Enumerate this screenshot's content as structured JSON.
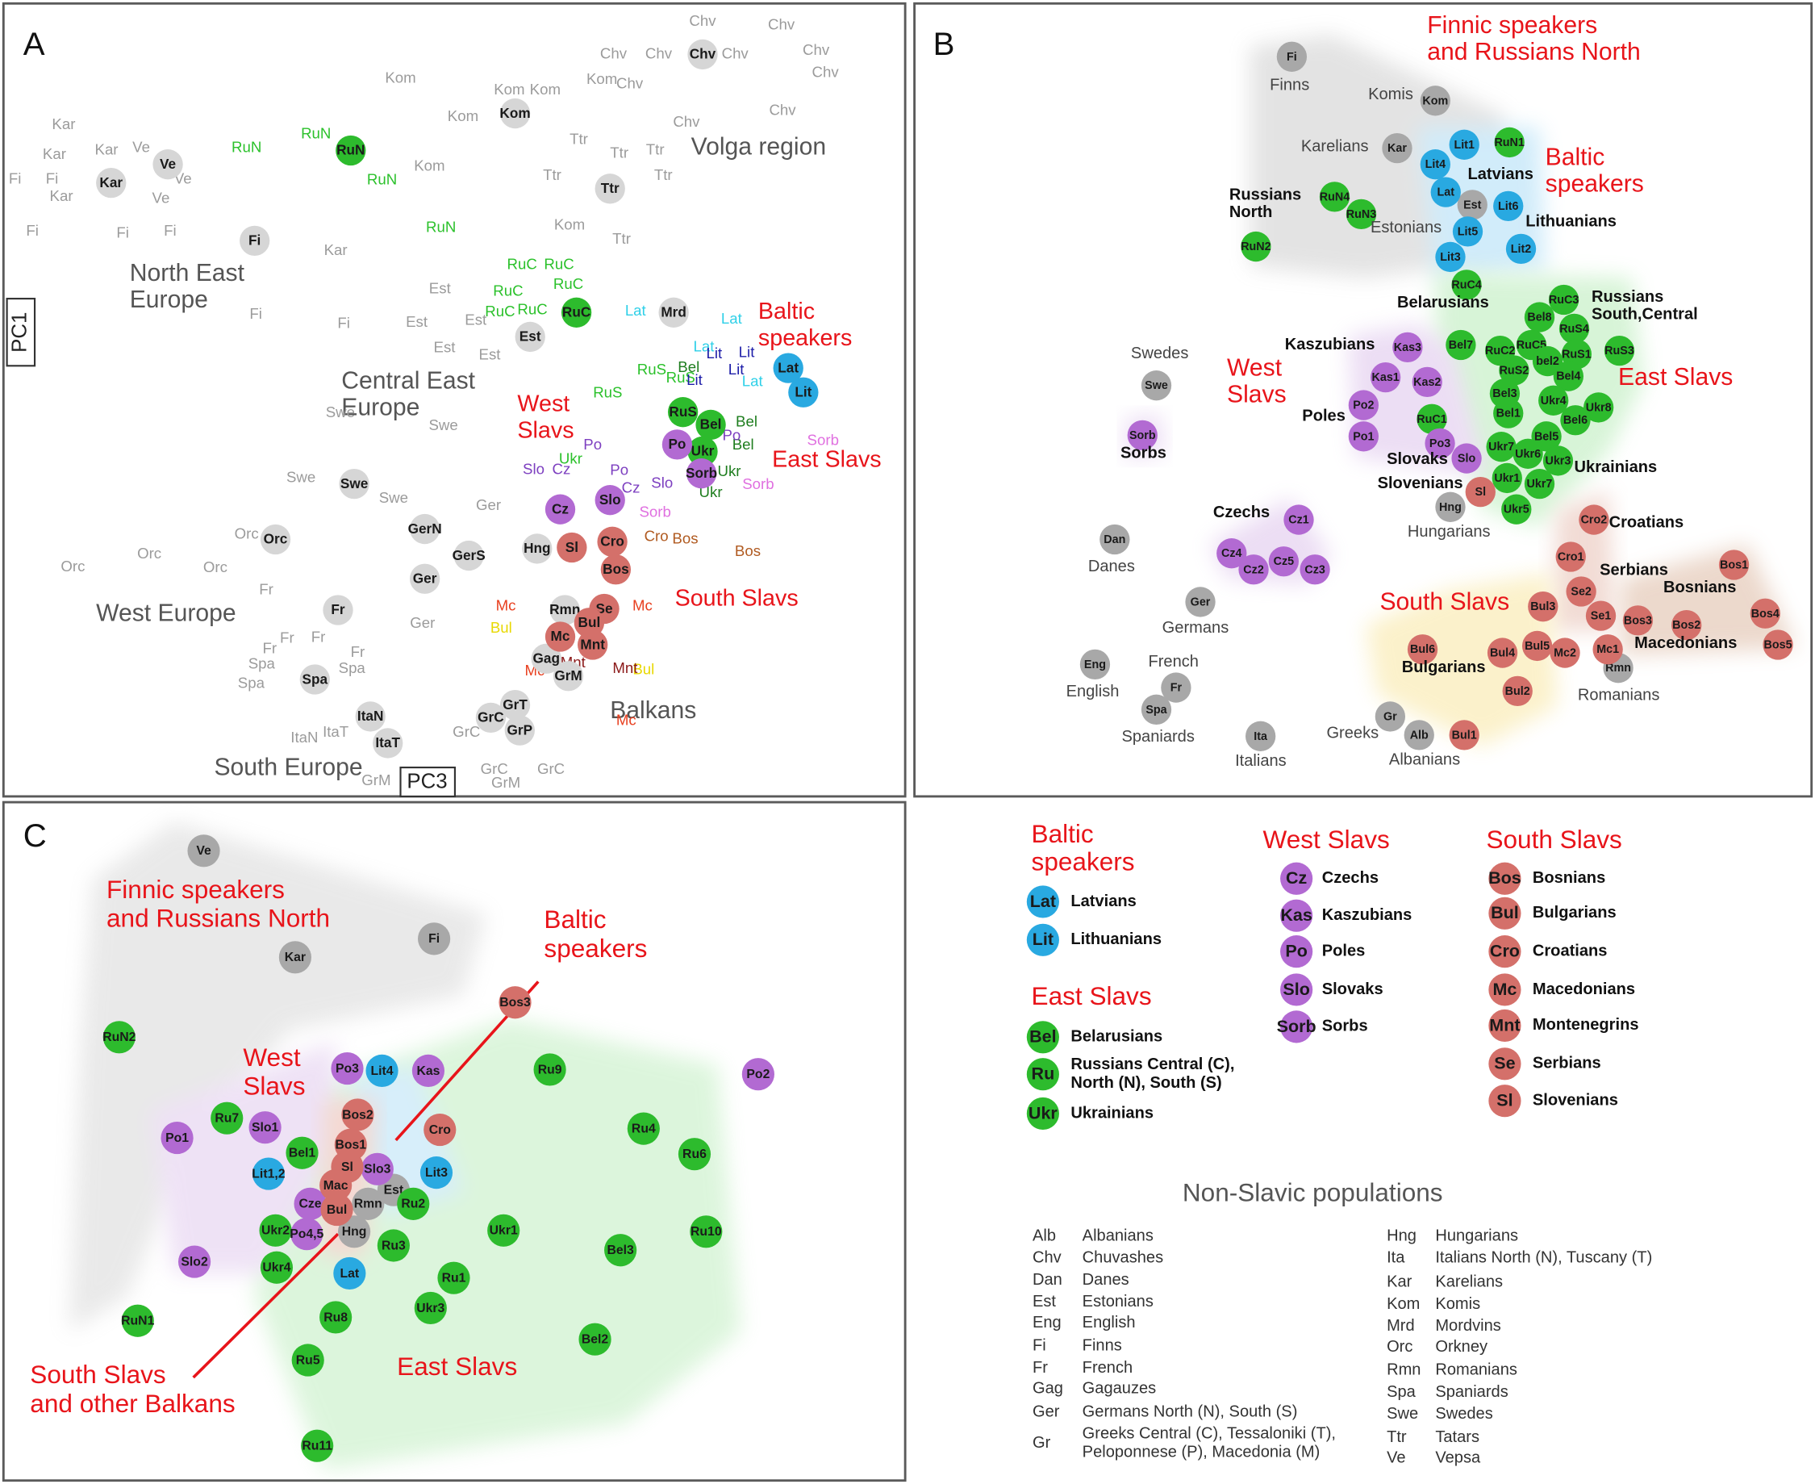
{
  "panels": [
    {
      "letter": "A",
      "axis_labels": {
        "y": "PC1",
        "x": "PC3"
      },
      "region_labels": [
        [
          "North East",
          "Europe"
        ],
        [
          "Central East",
          "Europe"
        ],
        [
          "Volga region"
        ],
        [
          "West Europe"
        ],
        [
          "South Europe"
        ],
        [
          "Balkans"
        ]
      ],
      "slavic_labels": [
        [
          "Baltic",
          "speakers"
        ],
        [
          "West",
          "Slavs"
        ],
        [
          "East Slavs"
        ],
        [
          "South Slavs"
        ]
      ],
      "sample_labels": [
        {
          "color": "#9b9b9b",
          "labels": [
            "Chv",
            "Chv",
            "Chv",
            "Chv",
            "Chv",
            "Chv",
            "Chv",
            "Chv",
            "Chv",
            "Chv",
            "Kom",
            "Kom",
            "Kom",
            "Kom",
            "Kom",
            "Kom",
            "Kom",
            "Kar",
            "Kar",
            "Kar",
            "Kar",
            "Kar",
            "Ve",
            "Ve",
            "Ve",
            "Fi",
            "Fi",
            "Fi",
            "Fi",
            "Fi",
            "Fi",
            "Fi",
            "Ttr",
            "Ttr",
            "Ttr",
            "Ttr",
            "Ttr",
            "Ttr",
            "Est",
            "Est",
            "Est",
            "Est",
            "Est",
            "Swe",
            "Swe",
            "Swe",
            "Swe",
            "Orc",
            "Orc",
            "Orc",
            "Orc",
            "Fr",
            "Fr",
            "Fr",
            "Fr",
            "Fr",
            "Spa",
            "Spa",
            "Spa",
            "GrC",
            "GrC",
            "GrC",
            "GrM",
            "GrM",
            "Ger",
            "Ger",
            "ItaN",
            "ItaT"
          ]
        },
        {
          "color": "#2bc12b",
          "labels": [
            "RuN",
            "RuN",
            "RuN",
            "RuN",
            "RuC",
            "RuC",
            "RuC",
            "RuC",
            "RuC",
            "RuC",
            "RuS",
            "RuS",
            "RuS",
            "Ukr"
          ]
        },
        {
          "color": "#2fd0e8",
          "labels": [
            "Lat",
            "Lat",
            "Lat",
            "Lat"
          ]
        },
        {
          "color": "#1c1ca8",
          "labels": [
            "Lit",
            "Lit",
            "Lit",
            "Lit"
          ]
        },
        {
          "color": "#1e7d1e",
          "labels": [
            "Bel",
            "Bel",
            "Bel",
            "Ukr",
            "Ukr"
          ]
        },
        {
          "color": "#7d3fc0",
          "labels": [
            "Po",
            "Po",
            "Po",
            "Cz",
            "Cz",
            "Slo",
            "Slo"
          ]
        },
        {
          "color": "#e070e0",
          "labels": [
            "Sorb",
            "Sorb",
            "Sorb"
          ]
        },
        {
          "color": "#b05a20",
          "labels": [
            "Bos",
            "Bos",
            "Cro"
          ]
        },
        {
          "color": "#e84020",
          "labels": [
            "Mc",
            "Mc",
            "Mc",
            "Mc"
          ]
        },
        {
          "color": "#e8d800",
          "labels": [
            "Bul",
            "Bul"
          ]
        },
        {
          "color": "#8b1a1a",
          "labels": [
            "Mnt",
            "Mnt"
          ]
        }
      ],
      "nodes": [
        {
          "color": "#d6d6d6",
          "labels": [
            "Ve",
            "Kar",
            "Fi",
            "Kom",
            "Chv",
            "Ttr",
            "Mrd",
            "Est",
            "Swe",
            "Orc",
            "GerN",
            "GerS",
            "Ger",
            "Hng",
            "Fr",
            "Rmn",
            "Gag",
            "GrM",
            "Spa",
            "GrT",
            "GrC",
            "GrP",
            "ItaN",
            "ItaT"
          ]
        },
        {
          "color": "#2dbb2d",
          "labels": [
            "RuN",
            "RuC",
            "RuS",
            "Bel",
            "Ukr"
          ]
        },
        {
          "color": "#29a9e1",
          "labels": [
            "Lat",
            "Lit"
          ]
        },
        {
          "color": "#b26ad2",
          "labels": [
            "Po",
            "Sorb",
            "Slo",
            "Cz"
          ]
        },
        {
          "color": "#d4706a",
          "labels": [
            "Sl",
            "Cro",
            "Bos",
            "Se",
            "Bul",
            "Mc",
            "Mnt"
          ]
        }
      ]
    },
    {
      "letter": "B",
      "group_labels": [
        [
          "Finnic speakers",
          "and Russians North"
        ],
        [
          "Baltic",
          "speakers"
        ],
        [
          "West",
          "Slavs"
        ],
        [
          "East Slavs"
        ],
        [
          "South Slavs"
        ]
      ],
      "population_labels": [
        [
          "Latvians"
        ],
        [
          "Lithuanians"
        ],
        [
          "Russians",
          "North"
        ],
        [
          "Belarusians"
        ],
        [
          "Russians",
          "South,Central"
        ],
        [
          "Kaszubians"
        ],
        [
          "Poles"
        ],
        [
          "Sorbs"
        ],
        [
          "Slovaks"
        ],
        [
          "Slovenians"
        ],
        [
          "Ukrainians"
        ],
        [
          "Czechs"
        ],
        [
          "Croatians"
        ],
        [
          "Serbians"
        ],
        [
          "Bosnians"
        ],
        [
          "Macedonians"
        ],
        [
          "Bulgarians"
        ]
      ],
      "other_labels": [
        "Finns",
        "Komis",
        "Karelians",
        "Estonians",
        "Swedes",
        "Hungarians",
        "Danes",
        "Germans",
        "French",
        "English",
        "Spaniards",
        "Greeks",
        "Albanians",
        "Italians",
        "Romanians"
      ],
      "nodes": [
        {
          "color": "#a8a8a8",
          "labels": [
            "Fi",
            "Kom",
            "Kar",
            "Est",
            "Swe",
            "Hng",
            "Dan",
            "Ger",
            "Fr",
            "Eng",
            "Spa",
            "Gr",
            "Alb",
            "Ita",
            "Rmn"
          ]
        },
        {
          "color": "#2dbb2d",
          "labels": [
            "RuN1",
            "RuN4",
            "RuN3",
            "RuN2",
            "RuC4",
            "RuC3",
            "Bel8",
            "RuS4",
            "RuC2",
            "RuC5",
            "RuS1",
            "RuS3",
            "Bel7",
            "bel2",
            "RuS2",
            "Bel4",
            "Bel3",
            "Ukr4",
            "Ukr8",
            "Bel1",
            "Bel6",
            "Bel5",
            "Ukr7",
            "Ukr6",
            "Ukr3",
            "Ukr1",
            "Ukr7",
            "Ukr5",
            "RuC1"
          ]
        },
        {
          "color": "#29a9e1",
          "labels": [
            "Lit1",
            "Lit4",
            "Lat",
            "Lit6",
            "Lit5",
            "Lit3",
            "Lit2"
          ]
        },
        {
          "color": "#b26ad2",
          "labels": [
            "Kas3",
            "Kas1",
            "Kas2",
            "Po2",
            "Po1",
            "Po3",
            "Slo",
            "Sorb",
            "Cz1",
            "Cz4",
            "Cz2",
            "Cz5",
            "Cz3"
          ]
        },
        {
          "color": "#d4706a",
          "labels": [
            "Sl",
            "Cro2",
            "Cro1",
            "Bos1",
            "Se2",
            "Se1",
            "Bos3",
            "Bos2",
            "Bos4",
            "Bos5",
            "Bul3",
            "Bul6",
            "Bul4",
            "Bul5",
            "Mc2",
            "Mc1",
            "Bul2",
            "Bul1"
          ]
        }
      ]
    },
    {
      "letter": "C",
      "group_labels": [
        [
          "Finnic speakers",
          "and Russians North"
        ],
        [
          "Baltic",
          "speakers"
        ],
        [
          "West",
          "Slavs"
        ],
        [
          "South Slavs",
          "and other Balkans"
        ],
        [
          "East Slavs"
        ]
      ],
      "nodes": [
        {
          "color": "#a8a8a8",
          "labels": [
            "Ve",
            "Fi",
            "Kar",
            "Est",
            "Rmn",
            "Hng"
          ]
        },
        {
          "color": "#2dbb2d",
          "labels": [
            "RuN2",
            "Ru9",
            "Ru7",
            "Ru4",
            "Bel1",
            "Ru6",
            "Ru2",
            "Ukr2",
            "Ukr1",
            "Ru10",
            "Ru3",
            "Bel3",
            "Ukr4",
            "Ru1",
            "Ukr3",
            "RuN1",
            "Ru8",
            "Bel2",
            "Ru5",
            "Ru11"
          ]
        },
        {
          "color": "#29a9e1",
          "labels": [
            "Lit4",
            "Lit1,2",
            "Lit3",
            "Lat"
          ]
        },
        {
          "color": "#b26ad2",
          "labels": [
            "Po2",
            "Po3",
            "Kas",
            "Slo1",
            "Po1",
            "Slo3",
            "Cze",
            "Po4,5",
            "Slo2"
          ]
        },
        {
          "color": "#d4706a",
          "labels": [
            "Bos3",
            "Bos2",
            "Cro",
            "Bos1",
            "Sl",
            "Mac",
            "Bul"
          ]
        }
      ]
    }
  ],
  "legend": {
    "groups": [
      {
        "title": [
          "Baltic",
          "speakers"
        ],
        "color": "#29a9e1",
        "entries": [
          {
            "abbr": "Lat",
            "name": [
              "Latvians"
            ]
          },
          {
            "abbr": "Lit",
            "name": [
              "Lithuanians"
            ]
          }
        ]
      },
      {
        "title": [
          "East Slavs"
        ],
        "color": "#2dbb2d",
        "entries": [
          {
            "abbr": "Bel",
            "name": [
              "Belarusians"
            ]
          },
          {
            "abbr": "Ru",
            "name": [
              "Russians Central (C),",
              "North (N), South (S)"
            ]
          },
          {
            "abbr": "Ukr",
            "name": [
              "Ukrainians"
            ]
          }
        ]
      },
      {
        "title": [
          "West Slavs"
        ],
        "color": "#b26ad2",
        "entries": [
          {
            "abbr": "Cz",
            "name": [
              "Czechs"
            ]
          },
          {
            "abbr": "Kas",
            "name": [
              "Kaszubians"
            ]
          },
          {
            "abbr": "Po",
            "name": [
              "Poles"
            ]
          },
          {
            "abbr": "Slo",
            "name": [
              "Slovaks"
            ]
          },
          {
            "abbr": "Sorb",
            "name": [
              "Sorbs"
            ]
          }
        ]
      },
      {
        "title": [
          "South Slavs"
        ],
        "color": "#d4706a",
        "entries": [
          {
            "abbr": "Bos",
            "name": [
              "Bosnians"
            ]
          },
          {
            "abbr": "Bul",
            "name": [
              "Bulgarians"
            ]
          },
          {
            "abbr": "Cro",
            "name": [
              "Croatians"
            ]
          },
          {
            "abbr": "Mc",
            "name": [
              "Macedonians"
            ]
          },
          {
            "abbr": "Mnt",
            "name": [
              "Montenegrins"
            ]
          },
          {
            "abbr": "Se",
            "name": [
              "Serbians"
            ]
          },
          {
            "abbr": "Sl",
            "name": [
              "Slovenians"
            ]
          }
        ]
      }
    ],
    "non_slavic": {
      "title": "Non-Slavic populations",
      "rows": [
        {
          "abbr": "Alb",
          "name": [
            "Albanians"
          ]
        },
        {
          "abbr": "Chv",
          "name": [
            "Chuvashes"
          ]
        },
        {
          "abbr": "Dan",
          "name": [
            "Danes"
          ]
        },
        {
          "abbr": "Est",
          "name": [
            "Estonians"
          ]
        },
        {
          "abbr": "Eng",
          "name": [
            "English"
          ]
        },
        {
          "abbr": "Fi",
          "name": [
            "Finns"
          ]
        },
        {
          "abbr": "Fr",
          "name": [
            "French"
          ]
        },
        {
          "abbr": "Gag",
          "name": [
            "Gagauzes"
          ]
        },
        {
          "abbr": "Ger",
          "name": [
            "Germans North (N), South (S)"
          ]
        },
        {
          "abbr": "Gr",
          "name": [
            "Greeks Central (C), Tessaloniki (T),",
            "Peloponnese (P), Macedonia (M)"
          ]
        },
        {
          "abbr": "Hng",
          "name": [
            "Hungarians"
          ]
        },
        {
          "abbr": "Ita",
          "name": [
            "Italians North (N), Tuscany (T)"
          ]
        },
        {
          "abbr": "Kar",
          "name": [
            "Karelians"
          ]
        },
        {
          "abbr": "Kom",
          "name": [
            "Komis"
          ]
        },
        {
          "abbr": "Mrd",
          "name": [
            "Mordvins"
          ]
        },
        {
          "abbr": "Orc",
          "name": [
            "Orkney"
          ]
        },
        {
          "abbr": "Rmn",
          "name": [
            "Romanians"
          ]
        },
        {
          "abbr": "Spa",
          "name": [
            "Spaniards"
          ]
        },
        {
          "abbr": "Swe",
          "name": [
            "Swedes"
          ]
        },
        {
          "abbr": "Ttr",
          "name": [
            "Tatars"
          ]
        },
        {
          "abbr": "Ve",
          "name": [
            "Vepsa"
          ]
        }
      ]
    }
  }
}
